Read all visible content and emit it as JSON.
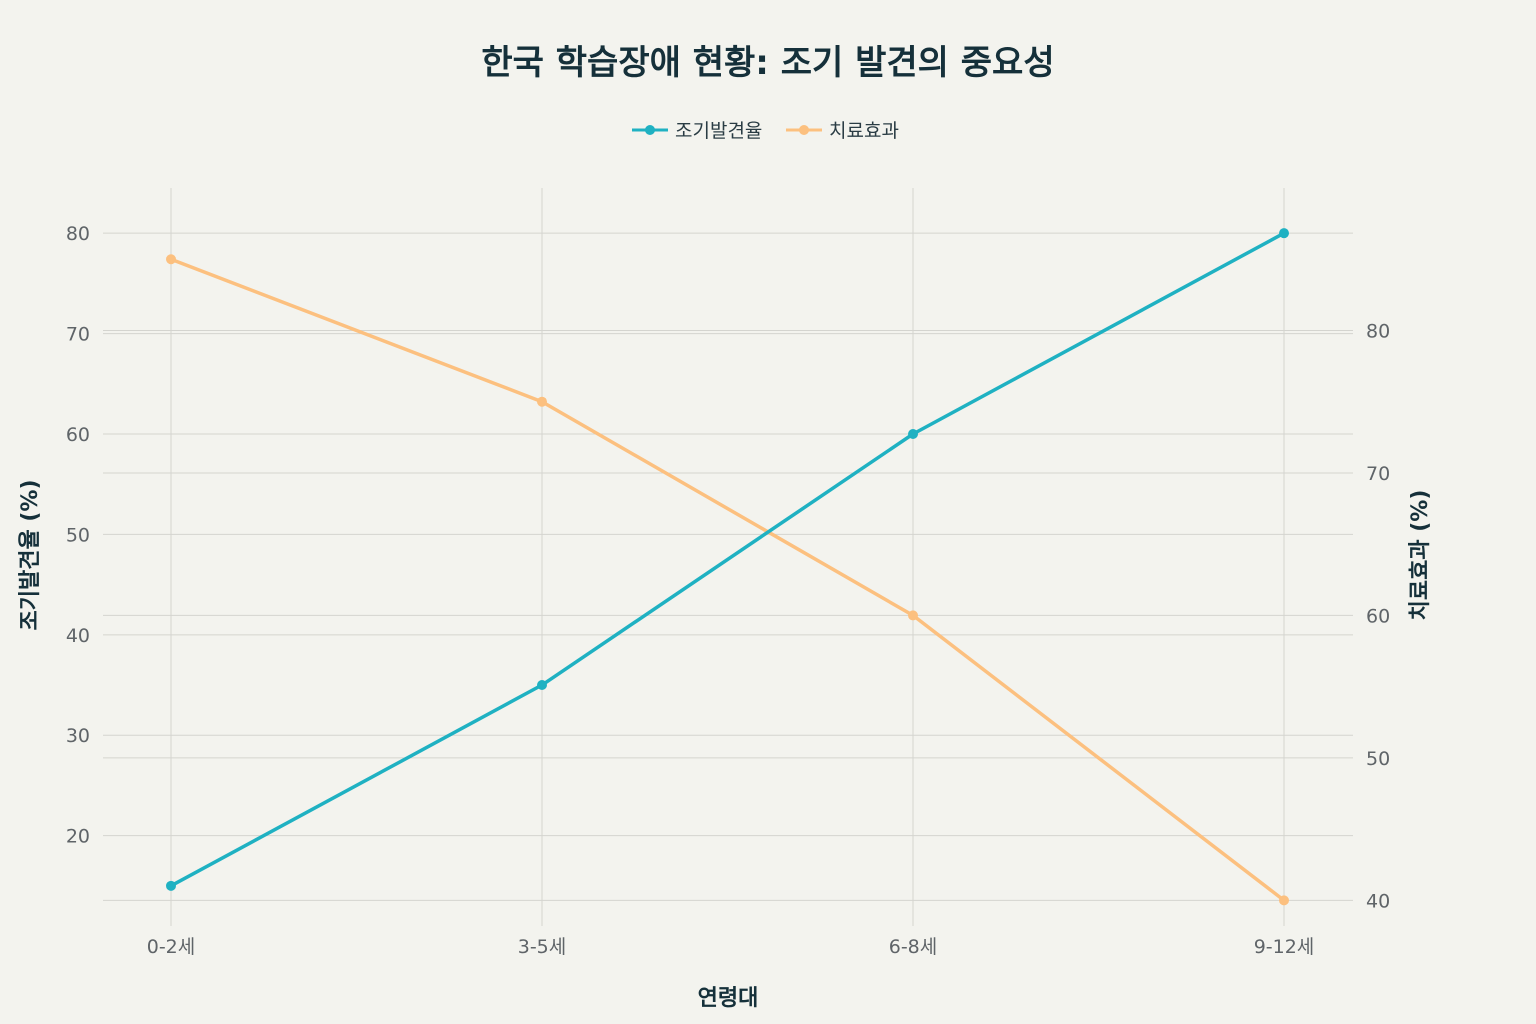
{
  "chart_data": {
    "type": "line",
    "title": "한국 학습장애 현황: 조기 발견의 중요성",
    "categories": [
      "0-2세",
      "3-5세",
      "6-8세",
      "9-12세"
    ],
    "xlabel": "연령대",
    "ylabel": "조기발견율 (%)",
    "y2label": "치료효과 (%)",
    "ylim": [
      11,
      84.5
    ],
    "y2lim": [
      38.2,
      90
    ],
    "yticks": [
      20,
      30,
      40,
      50,
      60,
      70,
      80
    ],
    "y2ticks": [
      40,
      50,
      60,
      70,
      80
    ],
    "grid": true,
    "legend_position": "top-center",
    "series": [
      {
        "name": "조기발견율",
        "axis": "left",
        "color": "#1fb1c2",
        "values": [
          15,
          35,
          60,
          80
        ]
      },
      {
        "name": "치료효과",
        "axis": "right",
        "color": "#fcc07f",
        "values": [
          85,
          75,
          60,
          40
        ]
      }
    ]
  }
}
